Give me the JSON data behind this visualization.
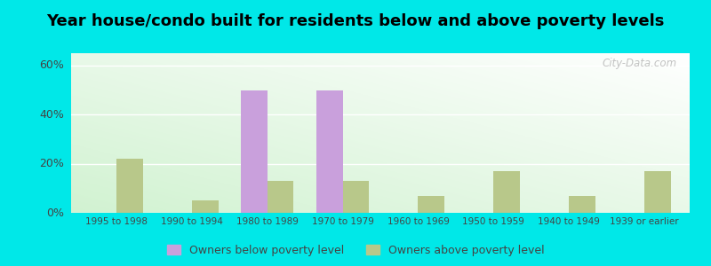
{
  "title": "Year house/condo built for residents below and above poverty levels",
  "categories": [
    "1995 to 1998",
    "1990 to 1994",
    "1980 to 1989",
    "1970 to 1979",
    "1960 to 1969",
    "1950 to 1959",
    "1940 to 1949",
    "1939 or earlier"
  ],
  "below_poverty": [
    0,
    0,
    50,
    50,
    0,
    0,
    0,
    0
  ],
  "above_poverty": [
    22,
    5,
    13,
    13,
    7,
    17,
    7,
    17
  ],
  "below_color": "#c9a0dc",
  "above_color": "#b8c88a",
  "ylim": [
    0,
    65
  ],
  "yticks": [
    0,
    20,
    40,
    60
  ],
  "ytick_labels": [
    "0%",
    "20%",
    "40%",
    "60%"
  ],
  "outer_background": "#00e8e8",
  "legend_below_label": "Owners below poverty level",
  "legend_above_label": "Owners above poverty level",
  "bar_width": 0.35,
  "title_fontsize": 13
}
